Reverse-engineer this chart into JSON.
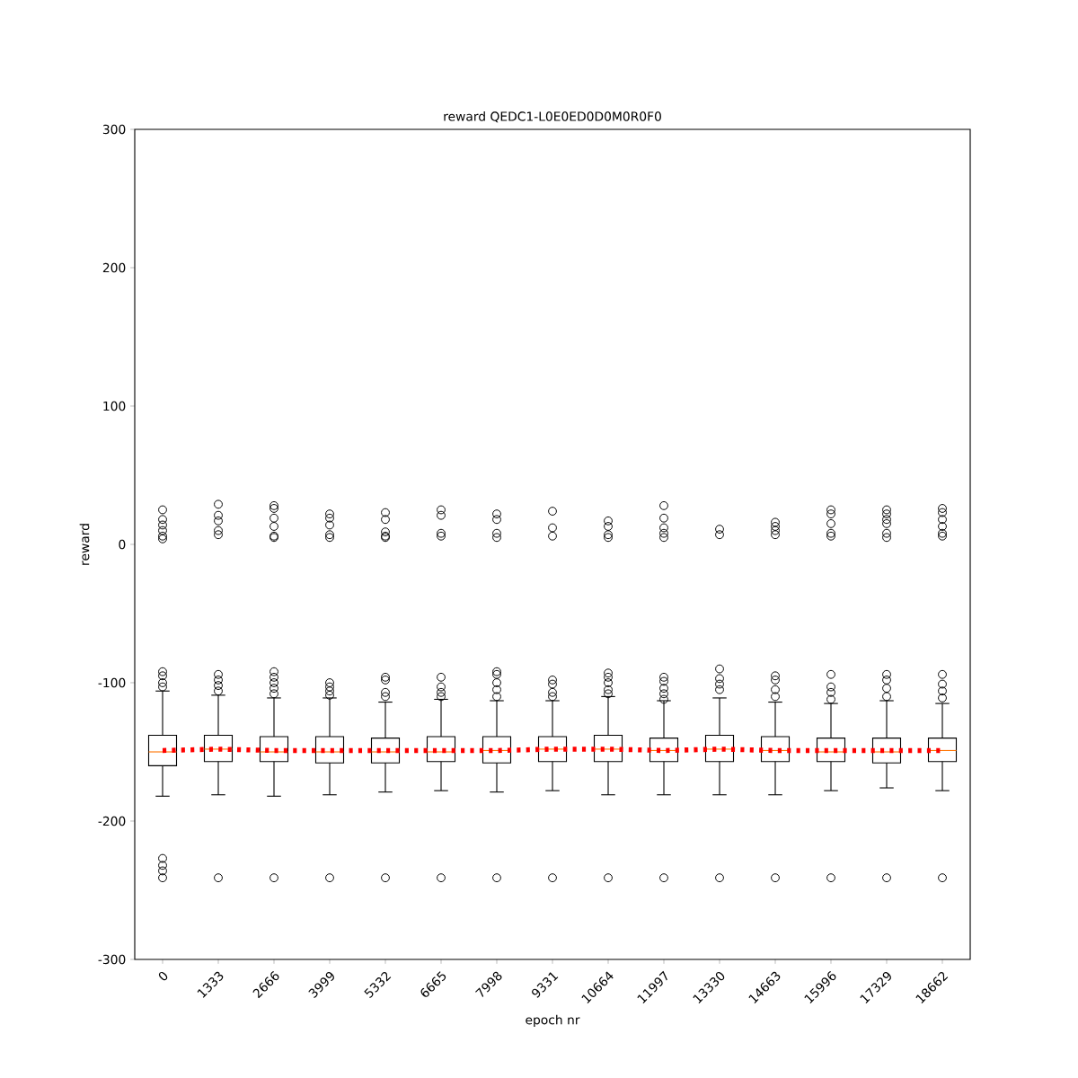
{
  "chart_data": {
    "type": "box",
    "title": "reward QEDC1-L0E0ED0D0M0R0F0",
    "xlabel": "epoch nr",
    "ylabel": "reward",
    "categories": [
      "0",
      "1333",
      "2666",
      "3999",
      "5332",
      "6665",
      "7998",
      "9331",
      "10664",
      "11997",
      "13330",
      "14663",
      "15996",
      "17329",
      "18662"
    ],
    "ylim": [
      -300,
      300
    ],
    "yticks": [
      -300,
      -200,
      -100,
      0,
      100,
      200,
      300
    ],
    "grid": false,
    "marker": "circle",
    "boxes": [
      {
        "low": -182,
        "q1": -160,
        "median": -150,
        "q3": -138,
        "high": -106,
        "outliers": [
          -92,
          -95,
          -100,
          -103,
          25,
          18,
          14,
          10,
          6,
          4,
          -227,
          -232,
          -236,
          -241
        ]
      },
      {
        "low": -181,
        "q1": -157,
        "median": -148,
        "q3": -138,
        "high": -109,
        "outliers": [
          -94,
          -98,
          -102,
          -106,
          29,
          21,
          17,
          10,
          7,
          -241
        ]
      },
      {
        "low": -182,
        "q1": -157,
        "median": -150,
        "q3": -139,
        "high": -111,
        "outliers": [
          -92,
          -96,
          -100,
          -104,
          -108,
          28,
          26,
          19,
          13,
          6,
          5,
          -241
        ]
      },
      {
        "low": -181,
        "q1": -158,
        "median": -150,
        "q3": -139,
        "high": -111,
        "outliers": [
          -100,
          -103,
          -106,
          -109,
          22,
          19,
          14,
          7,
          5,
          -241
        ]
      },
      {
        "low": -179,
        "q1": -158,
        "median": -150,
        "q3": -140,
        "high": -114,
        "outliers": [
          -96,
          -98,
          -107,
          -110,
          23,
          18,
          9,
          6,
          5,
          -241
        ]
      },
      {
        "low": -178,
        "q1": -157,
        "median": -150,
        "q3": -139,
        "high": -112,
        "outliers": [
          -96,
          -103,
          -107,
          -110,
          25,
          21,
          8,
          6,
          -241
        ]
      },
      {
        "low": -179,
        "q1": -158,
        "median": -149,
        "q3": -139,
        "high": -113,
        "outliers": [
          -92,
          -94,
          -100,
          -105,
          -110,
          22,
          18,
          8,
          5,
          -241
        ]
      },
      {
        "low": -178,
        "q1": -157,
        "median": -148,
        "q3": -139,
        "high": -113,
        "outliers": [
          -98,
          -101,
          -107,
          -110,
          24,
          12,
          6,
          -241
        ]
      },
      {
        "low": -181,
        "q1": -157,
        "median": -148,
        "q3": -138,
        "high": -110,
        "outliers": [
          -93,
          -96,
          -100,
          -105,
          -108,
          17,
          13,
          7,
          5,
          -241
        ]
      },
      {
        "low": -181,
        "q1": -157,
        "median": -149,
        "q3": -140,
        "high": -113,
        "outliers": [
          -96,
          -99,
          -104,
          -108,
          -112,
          28,
          19,
          12,
          8,
          5,
          -241
        ]
      },
      {
        "low": -181,
        "q1": -157,
        "median": -148,
        "q3": -138,
        "high": -111,
        "outliers": [
          -90,
          -97,
          -101,
          -105,
          11,
          7,
          -241
        ]
      },
      {
        "low": -181,
        "q1": -157,
        "median": -149,
        "q3": -139,
        "high": -114,
        "outliers": [
          -95,
          -98,
          -105,
          -110,
          16,
          13,
          10,
          7,
          -241
        ]
      },
      {
        "low": -178,
        "q1": -157,
        "median": -150,
        "q3": -140,
        "high": -115,
        "outliers": [
          -94,
          -103,
          -107,
          -112,
          25,
          22,
          15,
          8,
          6,
          -241
        ]
      },
      {
        "low": -176,
        "q1": -158,
        "median": -150,
        "q3": -140,
        "high": -113,
        "outliers": [
          -94,
          -98,
          -104,
          -110,
          25,
          22,
          18,
          15,
          8,
          5,
          -241
        ]
      },
      {
        "low": -178,
        "q1": -157,
        "median": -149,
        "q3": -140,
        "high": -115,
        "outliers": [
          -94,
          -101,
          -106,
          -111,
          26,
          23,
          18,
          13,
          8,
          6,
          -241
        ]
      }
    ],
    "series": [
      {
        "type": "line",
        "color": "#ff0000",
        "line_style": "dotted",
        "marker": "none",
        "values": [
          -149,
          -148,
          -149,
          -149,
          -149,
          -149,
          -149,
          -148,
          -148,
          -149,
          -148,
          -149,
          -149,
          -149,
          -149
        ]
      }
    ]
  }
}
